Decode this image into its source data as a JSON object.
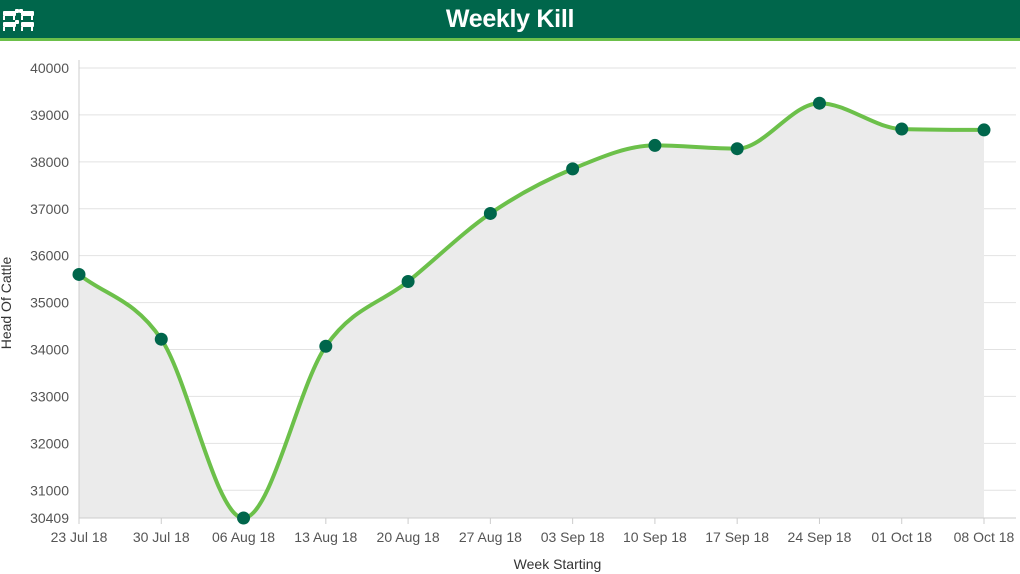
{
  "header": {
    "title": "Weekly Kill",
    "logo_icon": "cattle-icon"
  },
  "colors": {
    "header_bg": "#00664b",
    "accent_line": "#6cc04a",
    "marker": "#00664b",
    "area_fill": "#ebebeb"
  },
  "chart_data": {
    "type": "area",
    "categories": [
      "23 Jul 18",
      "30 Jul 18",
      "06 Aug 18",
      "13 Aug 18",
      "20 Aug 18",
      "27 Aug 18",
      "03 Sep 18",
      "10 Sep 18",
      "17 Sep 18",
      "24 Sep 18",
      "01 Oct 18",
      "08 Oct 18"
    ],
    "series": [
      {
        "values": [
          35600,
          34220,
          30409,
          34070,
          35450,
          36900,
          37850,
          38350,
          38280,
          39250,
          38700,
          38680
        ]
      }
    ],
    "xlabel": "Week Starting",
    "ylabel": "Head Of Cattle",
    "ylim": [
      30409,
      40000
    ],
    "yticks": [
      30409,
      31000,
      32000,
      33000,
      34000,
      35000,
      36000,
      37000,
      38000,
      39000,
      40000
    ],
    "grid": true,
    "legend": "none"
  }
}
